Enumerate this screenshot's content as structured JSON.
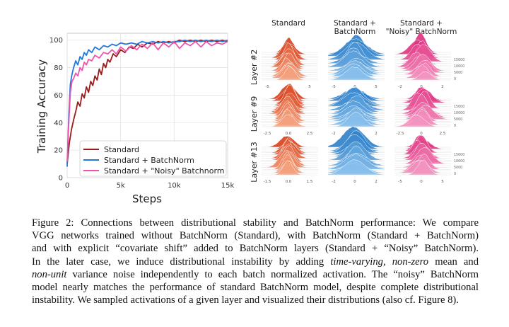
{
  "chart_data": [
    {
      "type": "line",
      "xlabel": "Steps",
      "ylabel": "Training Accuracy",
      "xlim": [
        0,
        15000
      ],
      "ylim": [
        0,
        105
      ],
      "xticks": [
        0,
        5000,
        10000,
        15000
      ],
      "xtick_labels": [
        "0",
        "5k",
        "10k",
        "15k"
      ],
      "yticks": [
        0,
        20,
        40,
        60,
        80,
        100
      ],
      "ytick_labels": [
        "0",
        "20",
        "40",
        "60",
        "80",
        "100"
      ],
      "grid": true,
      "legend": "bottom-left",
      "series": [
        {
          "name": "Standard",
          "color": "#9b1b1b",
          "x": [
            0,
            200,
            400,
            600,
            800,
            1000,
            1200,
            1400,
            1600,
            1800,
            2000,
            2200,
            2400,
            2600,
            2800,
            3000,
            3200,
            3400,
            3600,
            3800,
            4000,
            4300,
            4600,
            5000,
            5400,
            5800,
            6200,
            6600,
            7000,
            7500,
            8000,
            8500,
            9000,
            9500,
            10000,
            10500,
            11000,
            11500,
            12000,
            12500,
            13000,
            13500,
            14000,
            14500,
            15000
          ],
          "values": [
            10,
            25,
            35,
            42,
            48,
            55,
            52,
            61,
            58,
            66,
            62,
            70,
            67,
            74,
            71,
            79,
            75,
            83,
            80,
            86,
            84,
            90,
            88,
            93,
            91,
            95,
            94,
            97,
            95,
            98,
            97,
            99,
            98,
            99,
            98,
            100,
            99,
            100,
            99,
            100,
            99,
            100,
            99,
            100,
            99
          ]
        },
        {
          "name": "Standard + BatchNorm",
          "color": "#2277dd",
          "x": [
            0,
            150,
            300,
            450,
            600,
            800,
            1000,
            1200,
            1400,
            1600,
            1800,
            2000,
            2300,
            2600,
            3000,
            3400,
            3800,
            4200,
            4600,
            5000,
            5500,
            6000,
            6500,
            7000,
            7500,
            8000,
            8500,
            9000,
            9500,
            10000,
            10500,
            11000,
            11500,
            12000,
            12500,
            13000,
            13500,
            14000,
            14500,
            15000
          ],
          "values": [
            8,
            45,
            68,
            75,
            80,
            85,
            82,
            88,
            86,
            91,
            89,
            93,
            91,
            95,
            93,
            96,
            95,
            97,
            96,
            98,
            97,
            98,
            97,
            99,
            98,
            99,
            98,
            99,
            98,
            99,
            99,
            100,
            99,
            100,
            99,
            100,
            99,
            100,
            99,
            100
          ]
        },
        {
          "name": "Standard + \"Noisy\" Batchnorm",
          "color": "#ee55aa",
          "x": [
            0,
            150,
            300,
            450,
            600,
            800,
            1000,
            1200,
            1400,
            1600,
            1800,
            2000,
            2300,
            2600,
            3000,
            3400,
            3800,
            4200,
            4600,
            5000,
            5500,
            6000,
            6500,
            7000,
            7500,
            8000,
            8500,
            9000,
            9500,
            10000,
            10500,
            11000,
            11500,
            12000,
            12500,
            13000,
            13500,
            14000,
            14500,
            15000
          ],
          "values": [
            12,
            40,
            62,
            70,
            72,
            76,
            74,
            80,
            78,
            84,
            82,
            86,
            85,
            89,
            87,
            91,
            90,
            93,
            90,
            95,
            92,
            96,
            93,
            97,
            94,
            98,
            93,
            98,
            95,
            99,
            94,
            98,
            96,
            99,
            95,
            99,
            96,
            98,
            97,
            99
          ]
        }
      ]
    },
    {
      "type": "ridgeline-grid",
      "columns": [
        "Standard",
        "Standard +\nBatchNorm",
        "Standard +\n\"Noisy\" BatchNorm"
      ],
      "rows": [
        "Layer #2",
        "Layer #9",
        "Layer #13"
      ],
      "column_colors": [
        "#d8401c",
        "#2d7fc9",
        "#e0307f"
      ],
      "column_light_colors": [
        "#f6a783",
        "#8cc3ee",
        "#f49ac4"
      ],
      "ridge_labels": [
        "15000",
        "10000",
        "5000",
        "0"
      ],
      "axis_labels": [
        [
          [
            "-5",
            "0",
            "5"
          ],
          [
            "-5",
            "0",
            "5"
          ],
          [
            "-2",
            "0",
            "2"
          ]
        ],
        [
          [
            "-2.5",
            "0.0",
            "2.5"
          ],
          [
            "-2",
            "0",
            "2"
          ],
          [
            "-2.5",
            "0",
            "2.5"
          ]
        ],
        [
          [
            "-1.5",
            "0.0",
            "1.5"
          ],
          [
            "-2",
            "0",
            "2"
          ],
          [
            "-5",
            "0",
            "5"
          ]
        ]
      ]
    }
  ],
  "caption": {
    "lines": [
      [
        {
          "t": "Figure 2: Connections between distributional stability and BatchNorm performance: We compare"
        }
      ],
      [
        {
          "t": "VGG networks trained without BatchNorm (Standard), with BatchNorm (Standard + BatchNorm)"
        }
      ],
      [
        {
          "t": "and with explicit “covariate shift” added to BatchNorm layers (Standard + “Noisy” BatchNorm)."
        }
      ],
      [
        {
          "t": "In the later case, we induce distributional instability by adding "
        },
        {
          "t": "time-varying",
          "i": true
        },
        {
          "t": ", "
        },
        {
          "t": "non-zero",
          "i": true
        },
        {
          "t": " mean and"
        }
      ],
      [
        {
          "t": "non-unit",
          "i": true
        },
        {
          "t": " variance noise independently to each batch normalized activation. The “noisy” BatchNorm"
        }
      ],
      [
        {
          "t": "model nearly matches the performance of standard BatchNorm model, despite complete distributional"
        }
      ],
      [
        {
          "t": "instability. We sampled activations of a given layer and visualized their distributions (also cf. Figure 8)."
        }
      ]
    ]
  }
}
